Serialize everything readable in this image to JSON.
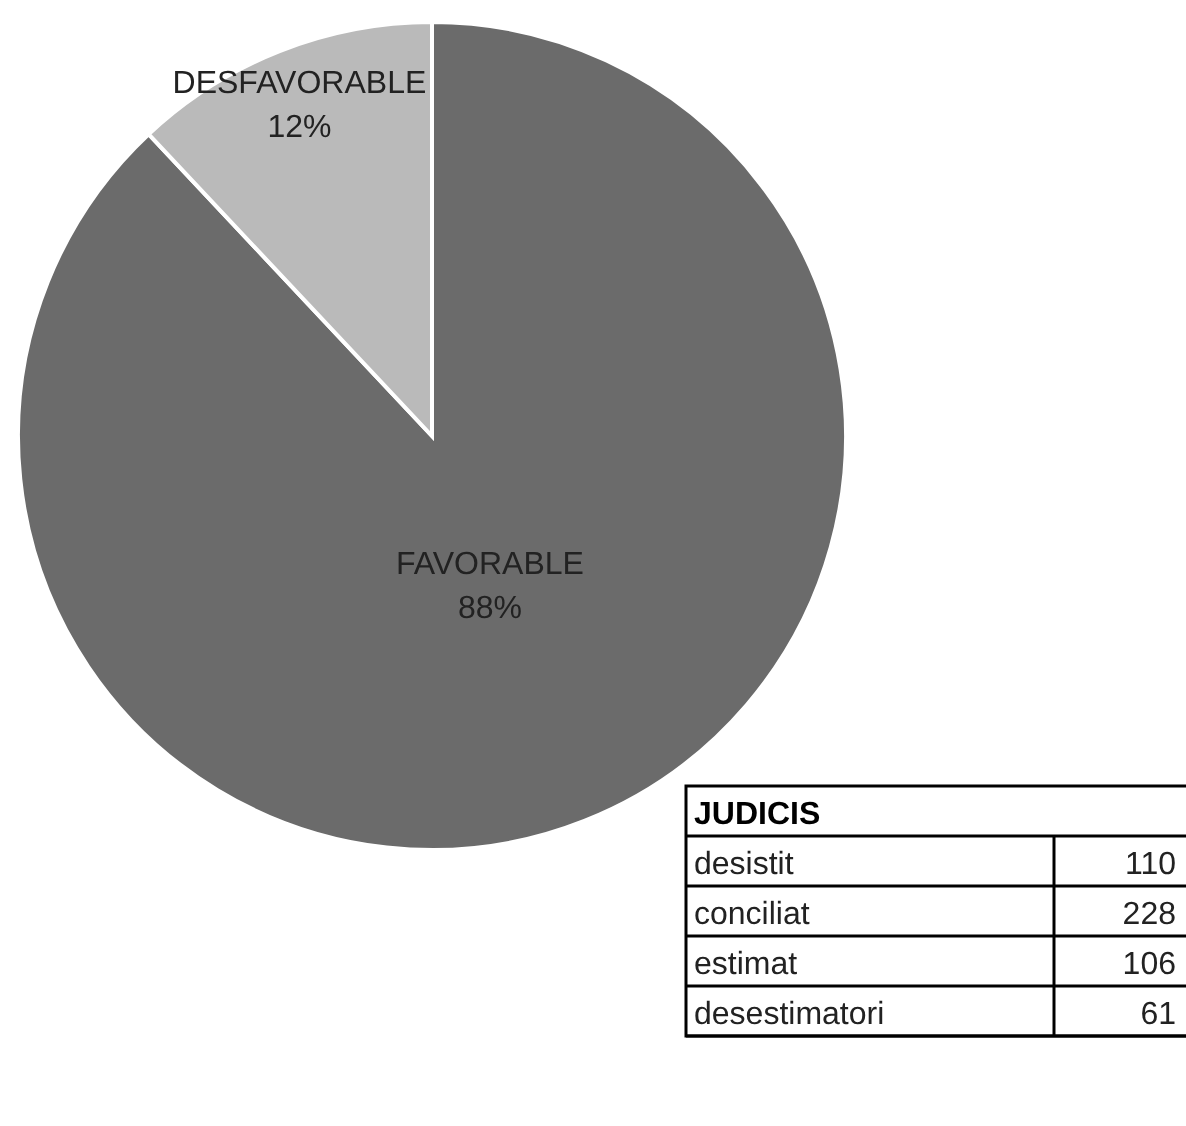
{
  "chart_data": [
    {
      "type": "pie",
      "categories": [
        "FAVORABLE",
        "DESFAVORABLE"
      ],
      "values": [
        88,
        12
      ],
      "colors": [
        "#6b6b6b",
        "#bababa"
      ],
      "value_labels": [
        "88%",
        "12%"
      ]
    },
    {
      "type": "other",
      "title": "JUDICIS",
      "categories": [
        "desistit",
        "conciliat",
        "estimat",
        "desestimatori"
      ],
      "values": [
        110,
        228,
        106,
        61
      ],
      "data_labels": true
    }
  ]
}
